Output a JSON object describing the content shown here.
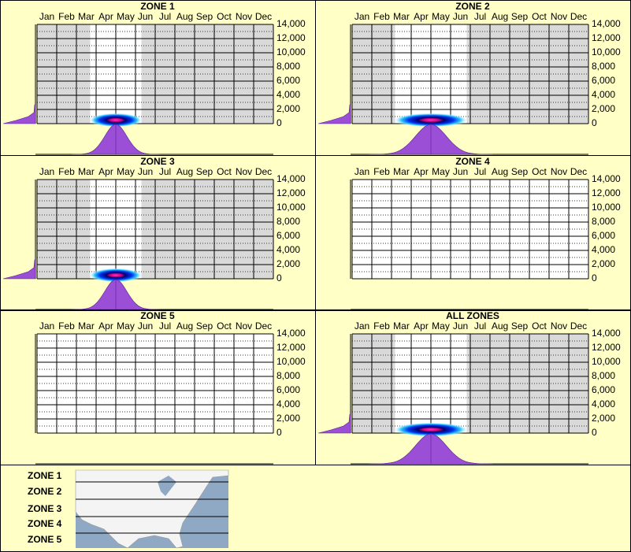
{
  "chart_data": [
    {
      "type": "heatmap",
      "title": "ZONE 1",
      "categories": [
        "Jan",
        "Feb",
        "Mar",
        "Apr",
        "May",
        "Jun",
        "Jul",
        "Aug",
        "Sep",
        "Oct",
        "Nov",
        "Dec"
      ],
      "ylim": [
        0,
        14000
      ],
      "yticks": [
        0,
        {
          "value": 2000,
          "label": "2,000"
        },
        {
          "value": 4000,
          "label": "4,000"
        },
        {
          "value": 6000,
          "label": "6,000"
        },
        {
          "value": 8000,
          "label": "8,000"
        },
        {
          "value": 10000,
          "label": "10,000"
        },
        {
          "value": 12000,
          "label": "12,000"
        },
        {
          "value": 14000,
          "label": "14,000"
        }
      ],
      "grid": true,
      "heat": {
        "x": 4.0,
        "y": 500,
        "width": 1.0
      }
    },
    {
      "type": "heatmap",
      "title": "ZONE 2",
      "categories": [
        "Jan",
        "Feb",
        "Mar",
        "Apr",
        "May",
        "Jun",
        "Jul",
        "Aug",
        "Sep",
        "Oct",
        "Nov",
        "Dec"
      ],
      "ylim": [
        0,
        14000
      ],
      "yticks": [
        0,
        {
          "value": 2000,
          "label": "2,000"
        },
        {
          "value": 4000,
          "label": "4,000"
        },
        {
          "value": 6000,
          "label": "6,000"
        },
        {
          "value": 8000,
          "label": "8,000"
        },
        {
          "value": 10000,
          "label": "10,000"
        },
        {
          "value": 12000,
          "label": "12,000"
        },
        {
          "value": 14000,
          "label": "14,000"
        }
      ],
      "grid": true,
      "heat": {
        "x": 4.0,
        "y": 500,
        "width": 1.4
      }
    },
    {
      "type": "heatmap",
      "title": "ZONE 3",
      "categories": [
        "Jan",
        "Feb",
        "Mar",
        "Apr",
        "May",
        "Jun",
        "Jul",
        "Aug",
        "Sep",
        "Oct",
        "Nov",
        "Dec"
      ],
      "ylim": [
        0,
        14000
      ],
      "yticks": [
        0,
        {
          "value": 2000,
          "label": "2,000"
        },
        {
          "value": 4000,
          "label": "4,000"
        },
        {
          "value": 6000,
          "label": "6,000"
        },
        {
          "value": 8000,
          "label": "8,000"
        },
        {
          "value": 10000,
          "label": "10,000"
        },
        {
          "value": 12000,
          "label": "12,000"
        },
        {
          "value": 14000,
          "label": "14,000"
        }
      ],
      "grid": true,
      "heat": {
        "x": 4.0,
        "y": 500,
        "width": 1.0
      }
    },
    {
      "type": "heatmap",
      "title": "ZONE 4",
      "categories": [
        "Jan",
        "Feb",
        "Mar",
        "Apr",
        "May",
        "Jun",
        "Jul",
        "Aug",
        "Sep",
        "Oct",
        "Nov",
        "Dec"
      ],
      "ylim": [
        0,
        14000
      ],
      "yticks": [
        0,
        {
          "value": 2000,
          "label": "2,000"
        },
        {
          "value": 4000,
          "label": "4,000"
        },
        {
          "value": 6000,
          "label": "6,000"
        },
        {
          "value": 8000,
          "label": "8,000"
        },
        {
          "value": 10000,
          "label": "10,000"
        },
        {
          "value": 12000,
          "label": "12,000"
        },
        {
          "value": 14000,
          "label": "14,000"
        }
      ],
      "grid": true
    },
    {
      "type": "heatmap",
      "title": "ZONE 5",
      "categories": [
        "Jan",
        "Feb",
        "Mar",
        "Apr",
        "May",
        "Jun",
        "Jul",
        "Aug",
        "Sep",
        "Oct",
        "Nov",
        "Dec"
      ],
      "ylim": [
        0,
        14000
      ],
      "yticks": [
        0,
        {
          "value": 2000,
          "label": "2,000"
        },
        {
          "value": 4000,
          "label": "4,000"
        },
        {
          "value": 6000,
          "label": "6,000"
        },
        {
          "value": 8000,
          "label": "8,000"
        },
        {
          "value": 10000,
          "label": "10,000"
        },
        {
          "value": 12000,
          "label": "12,000"
        },
        {
          "value": 14000,
          "label": "14,000"
        }
      ],
      "grid": true
    },
    {
      "type": "heatmap",
      "title": "ALL ZONES",
      "categories": [
        "Jan",
        "Feb",
        "Mar",
        "Apr",
        "May",
        "Jun",
        "Jul",
        "Aug",
        "Sep",
        "Oct",
        "Nov",
        "Dec"
      ],
      "ylim": [
        0,
        14000
      ],
      "yticks": [
        0,
        {
          "value": 2000,
          "label": "2,000"
        },
        {
          "value": 4000,
          "label": "4,000"
        },
        {
          "value": 6000,
          "label": "6,000"
        },
        {
          "value": 8000,
          "label": "8,000"
        },
        {
          "value": 10000,
          "label": "10,000"
        },
        {
          "value": 12000,
          "label": "12,000"
        },
        {
          "value": 14000,
          "label": "14,000"
        }
      ],
      "grid": true,
      "heat": {
        "x": 4.0,
        "y": 500,
        "width": 1.4
      }
    }
  ],
  "zone_labels": [
    "ZONE 1",
    "ZONE 2",
    "ZONE 3",
    "ZONE 4",
    "ZONE 5"
  ]
}
